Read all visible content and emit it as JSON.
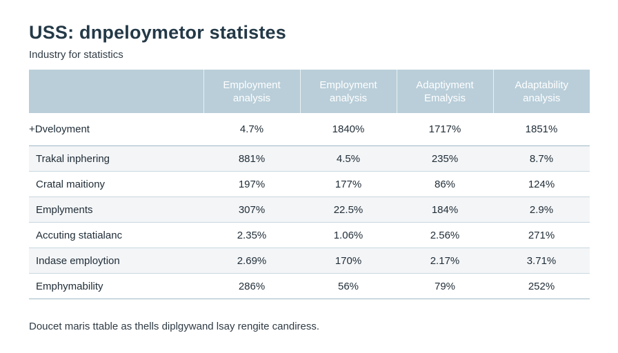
{
  "title": "USS: dnpeloymetor statistes",
  "subtitle": "Industry for statistics",
  "table": {
    "headers": [
      "",
      "Employment analysis",
      "Employment analysis",
      "Adaptiyment Emalysis",
      "Adaptability analysis"
    ],
    "rows": [
      [
        "+Dveloyment",
        "4.7%",
        "1840%",
        "1717%",
        "1851%"
      ],
      [
        "Trakal inphering",
        "881%",
        "4.5%",
        "235%",
        "8.7%"
      ],
      [
        "Cratal maitiony",
        "197%",
        "177%",
        "86%",
        "124%"
      ],
      [
        "Emplyments",
        "307%",
        "22.5%",
        "184%",
        "2.9%"
      ],
      [
        "Accuting statialanc",
        "2.35%",
        "1.06%",
        "2.56%",
        "271%"
      ],
      [
        "Indase employtion",
        "2.69%",
        "170%",
        "2.17%",
        "3.71%"
      ],
      [
        "Emphymability",
        "286%",
        "56%",
        "79%",
        "252%"
      ]
    ]
  },
  "footnote": "Doucet maris ttable as thells diplgywand lsay rengite candiress.",
  "colors": {
    "header_bg": "#b9ced9",
    "header_text": "#ffffff",
    "row_alt_bg": "#f3f5f7",
    "title_text": "#243947"
  }
}
